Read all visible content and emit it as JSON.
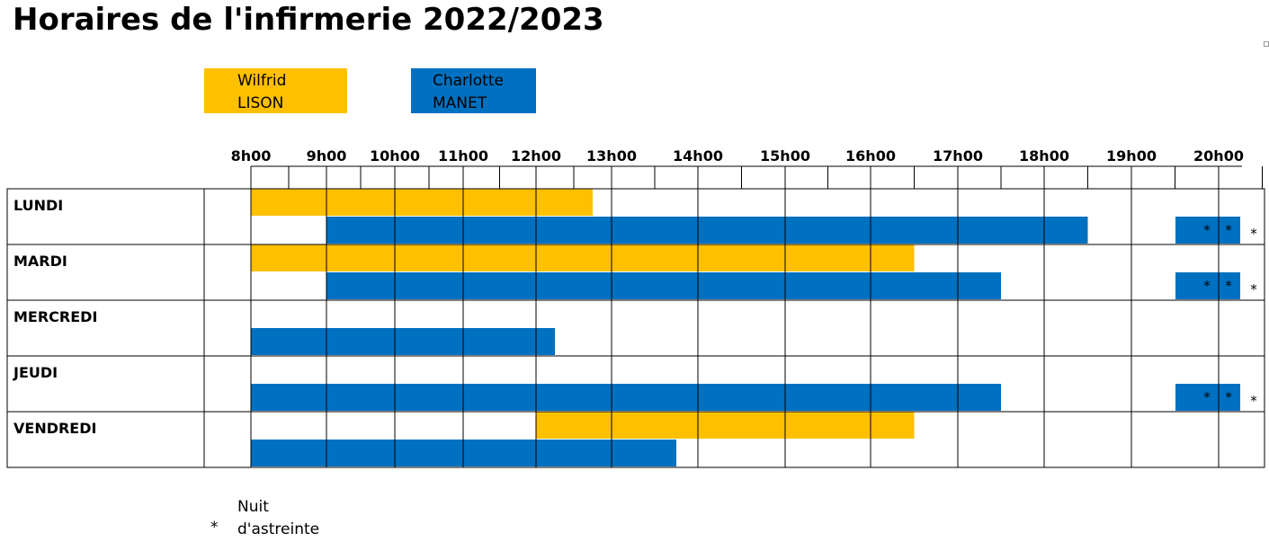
{
  "title": "Horaires de l'infirmerie 2022/2023",
  "legend": [
    {
      "first_name": "Wilfrid",
      "last_name": "LISON",
      "color": "#FFC000"
    },
    {
      "first_name": "Charlotte",
      "last_name": "MANET",
      "color": "#0070C0"
    }
  ],
  "footnote": {
    "symbol": "*",
    "line1": "Nuit",
    "line2": "d'astreinte"
  },
  "chart_data": {
    "type": "gantt",
    "x_unit": "hour",
    "xlim": [
      8,
      20.5
    ],
    "hour_labels": [
      "8h00",
      "9h00",
      "10h00",
      "11h00",
      "12h00",
      "13h00",
      "14h00",
      "15h00",
      "16h00",
      "17h00",
      "18h00",
      "19h00",
      "20h00"
    ],
    "days": [
      "LUNDI",
      "MARDI",
      "MERCREDI",
      "JEUDI",
      "VENDREDI"
    ],
    "series": [
      {
        "name": "Wilfrid LISON",
        "color": "#FFC000",
        "bars": [
          {
            "day": "LUNDI",
            "start": 8,
            "end": 12.75
          },
          {
            "day": "MARDI",
            "start": 8,
            "end": 16.5
          },
          {
            "day": "VENDREDI",
            "start": 12,
            "end": 16.5
          }
        ]
      },
      {
        "name": "Charlotte MANET",
        "color": "#0070C0",
        "bars": [
          {
            "day": "LUNDI",
            "start": 9,
            "end": 18.5
          },
          {
            "day": "MARDI",
            "start": 9,
            "end": 17.5
          },
          {
            "day": "MERCREDI",
            "start": 8,
            "end": 12.25
          },
          {
            "day": "JEUDI",
            "start": 8,
            "end": 17.5
          },
          {
            "day": "VENDREDI",
            "start": 8,
            "end": 13.75
          }
        ]
      }
    ],
    "night_duty": {
      "days": [
        "LUNDI",
        "MARDI",
        "JEUDI"
      ],
      "start": 19.5,
      "end": 20.25,
      "inner_marks": [
        "*",
        "*"
      ],
      "outer_mark": "*"
    }
  }
}
